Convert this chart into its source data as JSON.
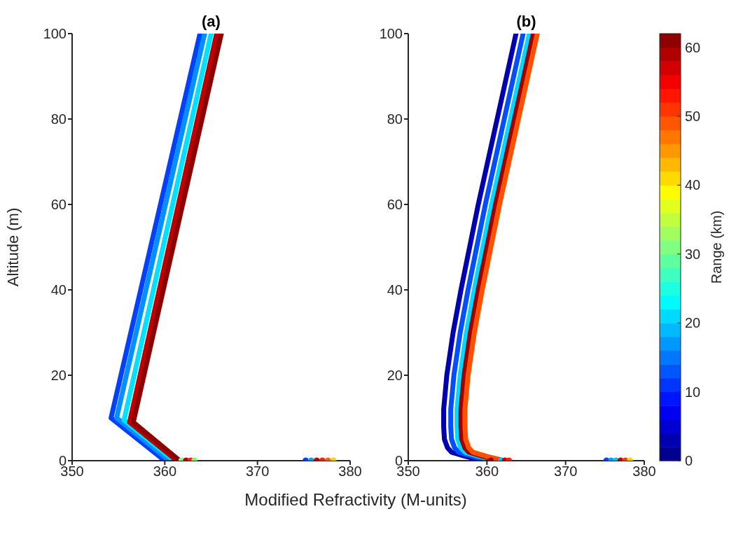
{
  "chart_data": [
    {
      "type": "line",
      "title": "(a)",
      "xlabel": "Modified Refractivity (M-units)",
      "ylabel": "Altitude (m)",
      "xlim": [
        350,
        380
      ],
      "xticks": [
        350,
        360,
        370,
        380
      ],
      "ylim": [
        0,
        100
      ],
      "yticks": [
        0,
        20,
        40,
        60,
        80,
        100
      ],
      "grid": false,
      "series": [
        {
          "color": "#0040ff",
          "x": [
            360.0,
            354.2,
            363.8
          ],
          "values": [
            0,
            10,
            100
          ]
        },
        {
          "color": "#0090ff",
          "x": [
            360.5,
            354.8,
            364.3
          ],
          "values": [
            0,
            10,
            100
          ]
        },
        {
          "color": "#00e0ff",
          "x": [
            361.0,
            355.6,
            365.0
          ],
          "values": [
            0,
            9.5,
            100
          ]
        },
        {
          "color": "#c00000",
          "x": [
            361.3,
            356.2,
            365.6
          ],
          "values": [
            0,
            9,
            100
          ]
        },
        {
          "color": "#8b0000",
          "x": [
            361.6,
            356.6,
            366.1
          ],
          "values": [
            0,
            9,
            100
          ]
        },
        {
          "type": "scatter",
          "x": [
            361.8,
            362.3,
            362.8,
            363.2,
            375.2,
            375.8,
            376.4,
            377.0,
            377.6,
            378.2
          ],
          "values": [
            0,
            0,
            0,
            0,
            0,
            0,
            0,
            0,
            0,
            0
          ],
          "colors": [
            "#80ff80",
            "#c00000",
            "#ff2000",
            "#80ff60",
            "#0040ff",
            "#00a0ff",
            "#c00000",
            "#ff2000",
            "#ff6000",
            "#ffd000"
          ]
        }
      ]
    },
    {
      "type": "line",
      "title": "(b)",
      "xlim": [
        350,
        380
      ],
      "xticks": [
        350,
        360,
        370,
        380
      ],
      "ylim": [
        0,
        100
      ],
      "yticks": [
        0,
        20,
        40,
        60,
        80,
        100
      ],
      "grid": false,
      "clabel": "Range (km)",
      "clim": [
        0,
        62
      ],
      "cticks": [
        0,
        10,
        20,
        30,
        40,
        50,
        60
      ],
      "series": [
        {
          "color": "#0000b0",
          "x": [
            359.5,
            357.3,
            355.5,
            355.0,
            354.6,
            354.5,
            354.5,
            354.9,
            355.7,
            356.7,
            358.9,
            361.3,
            363.7
          ],
          "values": [
            0,
            1,
            2,
            3,
            5,
            8,
            12,
            20,
            30,
            40,
            60,
            80,
            100
          ]
        },
        {
          "color": "#0050ff",
          "x": [
            360.4,
            358.2,
            356.4,
            355.9,
            355.5,
            355.4,
            355.4,
            355.8,
            356.6,
            357.6,
            359.8,
            362.2,
            364.6
          ],
          "values": [
            0,
            1,
            2,
            3,
            5,
            8,
            12,
            20,
            30,
            40,
            60,
            80,
            100
          ]
        },
        {
          "color": "#00d8ff",
          "x": [
            361.2,
            359.0,
            357.2,
            356.7,
            356.3,
            356.2,
            356.2,
            356.6,
            357.4,
            358.4,
            360.6,
            363.0,
            365.4
          ],
          "values": [
            0,
            1,
            2,
            3,
            5,
            8,
            12,
            20,
            30,
            40,
            60,
            80,
            100
          ]
        },
        {
          "color": "#a00000",
          "x": [
            361.7,
            359.5,
            357.7,
            357.2,
            356.8,
            356.7,
            356.7,
            357.1,
            357.9,
            358.9,
            361.1,
            363.5,
            365.9
          ],
          "values": [
            0,
            1,
            2,
            3,
            5,
            8,
            12,
            20,
            30,
            40,
            60,
            80,
            100
          ]
        },
        {
          "color": "#ff5000",
          "x": [
            362.2,
            360.0,
            358.2,
            357.7,
            357.3,
            357.2,
            357.2,
            357.6,
            358.4,
            359.4,
            361.6,
            364.0,
            366.4
          ],
          "values": [
            0,
            1,
            2,
            3,
            5,
            8,
            12,
            20,
            30,
            40,
            60,
            80,
            100
          ]
        },
        {
          "type": "scatter",
          "x": [
            360.5,
            361.2,
            361.8,
            362.3,
            362.8,
            375.2,
            375.8,
            376.4,
            377.0,
            377.6,
            378.2
          ],
          "values": [
            0,
            0,
            0,
            0,
            0,
            0,
            0,
            0,
            0,
            0,
            0
          ],
          "colors": [
            "#a00000",
            "#ff4000",
            "#00c0ff",
            "#c00000",
            "#ff2000",
            "#0040ff",
            "#00a0ff",
            "#00c0ff",
            "#c00000",
            "#ff4000",
            "#ffd000"
          ]
        }
      ]
    }
  ]
}
